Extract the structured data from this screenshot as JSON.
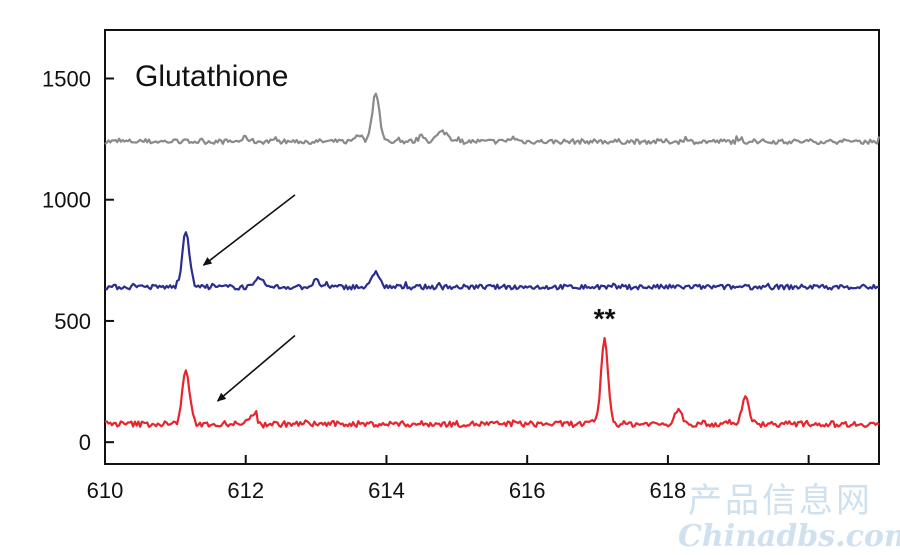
{
  "chart_data": {
    "type": "line",
    "title": "Glutathione",
    "xlabel": "",
    "ylabel": "",
    "xlim": [
      610,
      621
    ],
    "ylim": [
      -90,
      1700
    ],
    "xticks": [
      610,
      612,
      614,
      616,
      618
    ],
    "yticks": [
      0,
      500,
      1000,
      1500
    ],
    "grid": false,
    "series": [
      {
        "color": "#8a8a8a",
        "baseline": 1240,
        "noise": 10,
        "peaks": [
          [
            613.85,
            205,
            0.05
          ],
          [
            613.6,
            30,
            0.05
          ],
          [
            614.8,
            40,
            0.08
          ],
          [
            614.5,
            20,
            0.05
          ],
          [
            612.0,
            15,
            0.05
          ],
          [
            615.8,
            15,
            0.05
          ]
        ]
      },
      {
        "color": "#2a2f8f",
        "baseline": 640,
        "noise": 10,
        "peaks": [
          [
            611.15,
            235,
            0.05
          ],
          [
            613.85,
            65,
            0.05
          ],
          [
            612.2,
            35,
            0.05
          ],
          [
            613.0,
            25,
            0.05
          ]
        ]
      },
      {
        "color": "#e8242c",
        "baseline": 75,
        "noise": 12,
        "peaks": [
          [
            611.15,
            225,
            0.05
          ],
          [
            617.1,
            345,
            0.05
          ],
          [
            619.1,
            110,
            0.05
          ],
          [
            618.15,
            70,
            0.04
          ],
          [
            612.1,
            45,
            0.05
          ]
        ]
      }
    ],
    "annotations": [
      {
        "text": "**",
        "x": 617.1,
        "y": 470
      },
      {
        "type": "arrow",
        "from": [
          612.7,
          1020
        ],
        "to": [
          611.4,
          730
        ]
      },
      {
        "type": "arrow",
        "from": [
          612.7,
          440
        ],
        "to": [
          611.6,
          170
        ]
      }
    ]
  },
  "watermark": {
    "line1": "产品信息网",
    "line2": "Chinadbs.com"
  }
}
